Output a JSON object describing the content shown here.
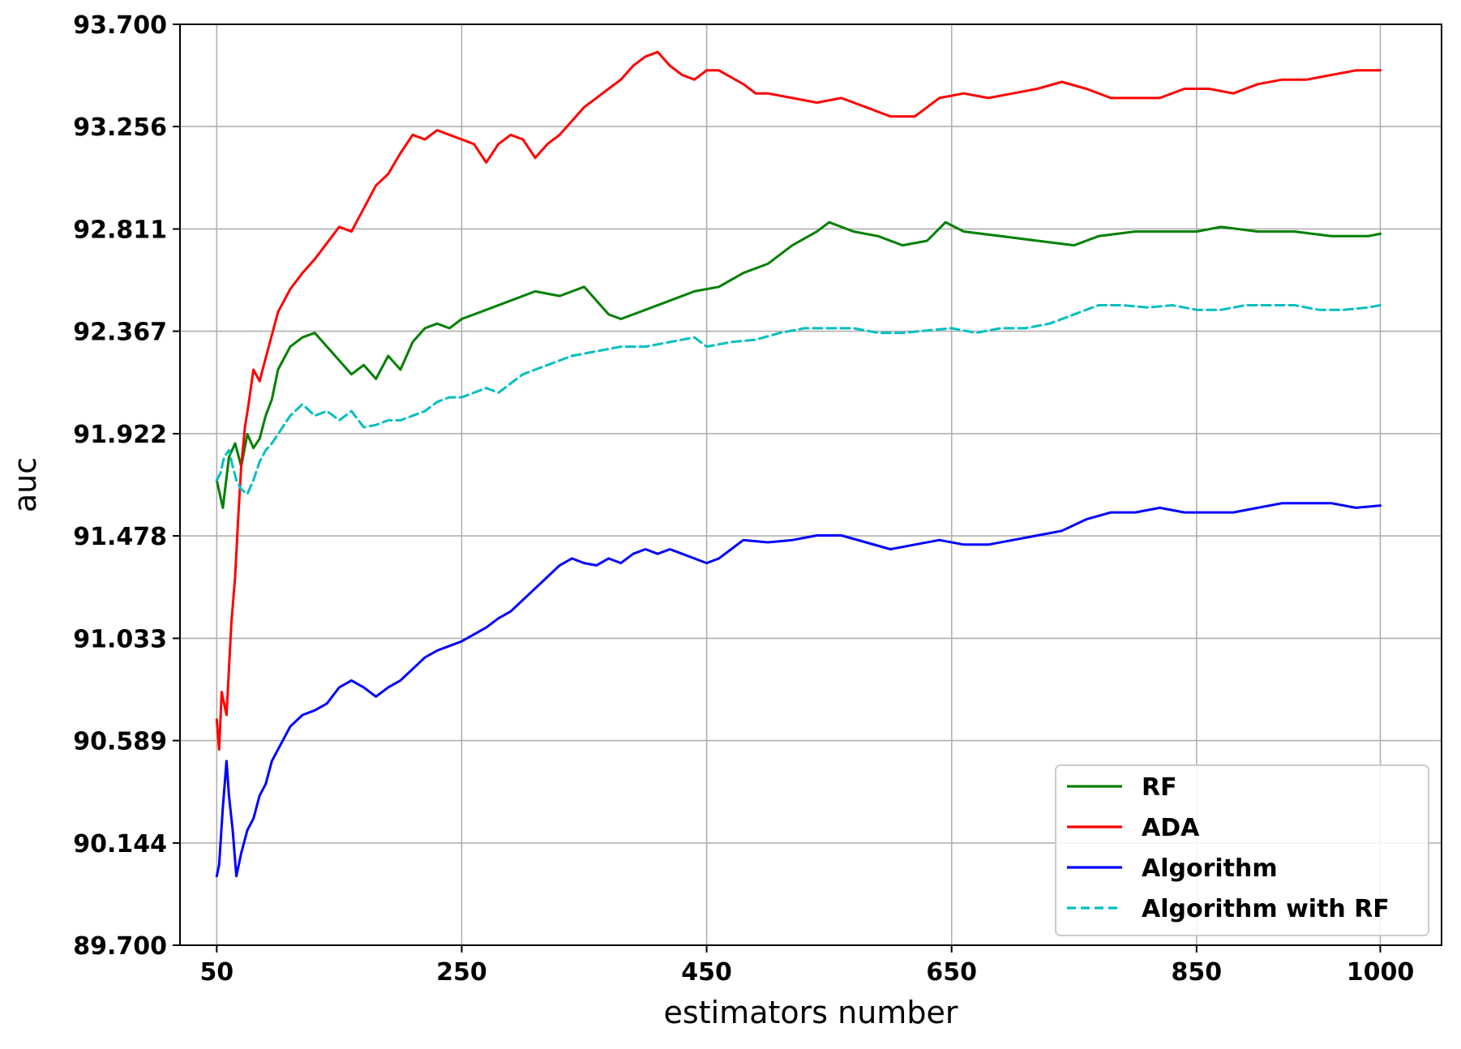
{
  "chart_data": {
    "type": "line",
    "title": "",
    "xlabel": "estimators number",
    "ylabel": "auc",
    "xlim": [
      20,
      1050
    ],
    "ylim": [
      89.7,
      93.7
    ],
    "xticks": [
      50,
      250,
      450,
      650,
      850,
      1000
    ],
    "xtick_labels": [
      "50",
      "250",
      "450",
      "650",
      "850",
      "1000"
    ],
    "yticks": [
      89.7,
      90.144,
      90.589,
      91.033,
      91.478,
      91.922,
      92.367,
      92.811,
      93.256,
      93.7
    ],
    "ytick_labels": [
      "89.700",
      "90.144",
      "90.589",
      "91.033",
      "91.478",
      "91.922",
      "92.367",
      "92.811",
      "93.256",
      "93.700"
    ],
    "grid": true,
    "legend_position": "lower-right",
    "series": [
      {
        "name": "RF",
        "color": "#008000",
        "dash": "solid",
        "x": [
          50,
          55,
          60,
          65,
          70,
          75,
          80,
          85,
          90,
          95,
          100,
          110,
          120,
          130,
          140,
          150,
          160,
          170,
          180,
          190,
          200,
          210,
          220,
          230,
          240,
          250,
          270,
          290,
          310,
          330,
          350,
          370,
          380,
          400,
          420,
          440,
          460,
          480,
          500,
          520,
          540,
          550,
          570,
          590,
          610,
          630,
          645,
          660,
          690,
          720,
          750,
          770,
          800,
          830,
          850,
          870,
          900,
          930,
          960,
          990,
          1000
        ],
        "y": [
          91.72,
          91.6,
          91.82,
          91.88,
          91.78,
          91.92,
          91.86,
          91.9,
          92.0,
          92.07,
          92.2,
          92.3,
          92.34,
          92.36,
          92.3,
          92.24,
          92.18,
          92.22,
          92.16,
          92.26,
          92.2,
          92.32,
          92.38,
          92.4,
          92.38,
          92.42,
          92.46,
          92.5,
          92.54,
          92.52,
          92.56,
          92.44,
          92.42,
          92.46,
          92.5,
          92.54,
          92.56,
          92.62,
          92.66,
          92.74,
          92.8,
          92.84,
          92.8,
          92.78,
          92.74,
          92.76,
          92.84,
          92.8,
          92.78,
          92.76,
          92.74,
          92.78,
          92.8,
          92.8,
          92.8,
          92.82,
          92.8,
          92.8,
          92.78,
          92.78,
          92.79
        ]
      },
      {
        "name": "ADA",
        "color": "#ff0000",
        "dash": "solid",
        "x": [
          50,
          52,
          54,
          56,
          58,
          60,
          62,
          65,
          68,
          70,
          73,
          76,
          80,
          85,
          90,
          95,
          100,
          110,
          120,
          130,
          140,
          150,
          160,
          170,
          180,
          190,
          200,
          210,
          220,
          230,
          240,
          250,
          260,
          270,
          280,
          290,
          300,
          310,
          320,
          330,
          340,
          350,
          360,
          370,
          380,
          390,
          400,
          410,
          420,
          430,
          440,
          450,
          460,
          470,
          480,
          490,
          500,
          520,
          540,
          560,
          580,
          600,
          620,
          640,
          660,
          680,
          700,
          720,
          740,
          760,
          780,
          800,
          820,
          840,
          860,
          880,
          900,
          920,
          940,
          960,
          980,
          1000
        ],
        "y": [
          90.68,
          90.55,
          90.8,
          90.75,
          90.7,
          90.9,
          91.1,
          91.3,
          91.6,
          91.78,
          91.95,
          92.05,
          92.2,
          92.15,
          92.25,
          92.35,
          92.45,
          92.55,
          92.62,
          92.68,
          92.75,
          92.82,
          92.8,
          92.9,
          93.0,
          93.05,
          93.14,
          93.22,
          93.2,
          93.24,
          93.22,
          93.2,
          93.18,
          93.1,
          93.18,
          93.22,
          93.2,
          93.12,
          93.18,
          93.22,
          93.28,
          93.34,
          93.38,
          93.42,
          93.46,
          93.52,
          93.56,
          93.58,
          93.52,
          93.48,
          93.46,
          93.5,
          93.5,
          93.47,
          93.44,
          93.4,
          93.4,
          93.38,
          93.36,
          93.38,
          93.34,
          93.3,
          93.3,
          93.38,
          93.4,
          93.38,
          93.4,
          93.42,
          93.45,
          93.42,
          93.38,
          93.38,
          93.38,
          93.42,
          93.42,
          93.4,
          93.44,
          93.46,
          93.46,
          93.48,
          93.5,
          93.5
        ]
      },
      {
        "name": "Algorithm",
        "color": "#0000ff",
        "dash": "solid",
        "x": [
          50,
          52,
          55,
          58,
          60,
          63,
          66,
          70,
          75,
          80,
          85,
          90,
          95,
          100,
          110,
          120,
          130,
          140,
          150,
          160,
          170,
          180,
          190,
          200,
          210,
          220,
          230,
          240,
          250,
          260,
          270,
          280,
          290,
          300,
          310,
          320,
          330,
          340,
          350,
          360,
          370,
          380,
          390,
          400,
          410,
          420,
          430,
          440,
          450,
          460,
          470,
          480,
          500,
          520,
          540,
          560,
          580,
          600,
          620,
          640,
          660,
          680,
          700,
          720,
          740,
          760,
          780,
          800,
          820,
          840,
          860,
          880,
          900,
          920,
          940,
          960,
          980,
          1000
        ],
        "y": [
          90.0,
          90.05,
          90.3,
          90.5,
          90.35,
          90.2,
          90.0,
          90.1,
          90.2,
          90.25,
          90.35,
          90.4,
          90.5,
          90.55,
          90.65,
          90.7,
          90.72,
          90.75,
          90.82,
          90.85,
          90.82,
          90.78,
          90.82,
          90.85,
          90.9,
          90.95,
          90.98,
          91.0,
          91.02,
          91.05,
          91.08,
          91.12,
          91.15,
          91.2,
          91.25,
          91.3,
          91.35,
          91.38,
          91.36,
          91.35,
          91.38,
          91.36,
          91.4,
          91.42,
          91.4,
          91.42,
          91.4,
          91.38,
          91.36,
          91.38,
          91.42,
          91.46,
          91.45,
          91.46,
          91.48,
          91.48,
          91.45,
          91.42,
          91.44,
          91.46,
          91.44,
          91.44,
          91.46,
          91.48,
          91.5,
          91.55,
          91.58,
          91.58,
          91.6,
          91.58,
          91.58,
          91.58,
          91.6,
          91.62,
          91.62,
          91.62,
          91.6,
          91.61
        ]
      },
      {
        "name": "Algorithm with RF",
        "color": "#00bfbf",
        "dash": "dashed",
        "x": [
          50,
          53,
          56,
          60,
          63,
          66,
          70,
          75,
          80,
          85,
          90,
          95,
          100,
          110,
          120,
          130,
          140,
          150,
          160,
          170,
          180,
          190,
          200,
          210,
          220,
          230,
          240,
          250,
          260,
          270,
          280,
          290,
          300,
          310,
          320,
          340,
          360,
          380,
          400,
          420,
          440,
          450,
          470,
          490,
          510,
          530,
          550,
          570,
          590,
          610,
          630,
          650,
          670,
          690,
          710,
          730,
          750,
          770,
          790,
          810,
          830,
          850,
          870,
          890,
          910,
          930,
          950,
          970,
          990,
          1000
        ],
        "y": [
          91.72,
          91.75,
          91.82,
          91.85,
          91.78,
          91.72,
          91.68,
          91.66,
          91.72,
          91.8,
          91.85,
          91.88,
          91.92,
          92.0,
          92.05,
          92.0,
          92.02,
          91.98,
          92.02,
          91.95,
          91.96,
          91.98,
          91.98,
          92.0,
          92.02,
          92.06,
          92.08,
          92.08,
          92.1,
          92.12,
          92.1,
          92.14,
          92.18,
          92.2,
          92.22,
          92.26,
          92.28,
          92.3,
          92.3,
          92.32,
          92.34,
          92.3,
          92.32,
          92.33,
          92.36,
          92.38,
          92.38,
          92.38,
          92.36,
          92.36,
          92.37,
          92.38,
          92.36,
          92.38,
          92.38,
          92.4,
          92.44,
          92.48,
          92.48,
          92.47,
          92.48,
          92.46,
          92.46,
          92.48,
          92.48,
          92.48,
          92.46,
          92.46,
          92.47,
          92.48
        ]
      }
    ]
  }
}
